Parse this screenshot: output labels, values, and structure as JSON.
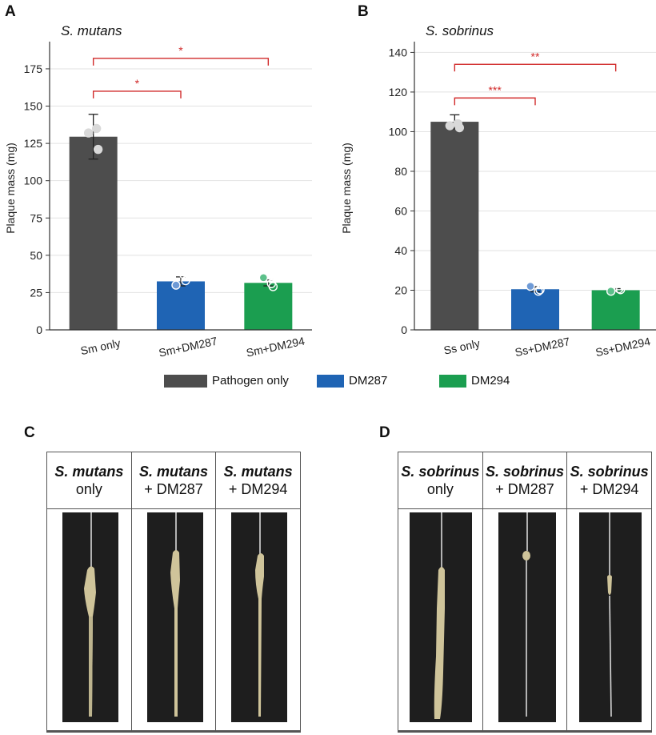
{
  "panels": {
    "a": "A",
    "b": "B",
    "c": "C",
    "d": "D"
  },
  "chart_data": [
    {
      "type": "bar",
      "title": "S. mutans",
      "ylabel": "Plaque mass (mg)",
      "ylim": [
        0,
        190
      ],
      "yticks": [
        0,
        25,
        50,
        75,
        100,
        125,
        150,
        175
      ],
      "grid": true,
      "categories": [
        "Sm only",
        "Sm+DM287",
        "Sm+DM294"
      ],
      "values": [
        129.5,
        32.5,
        31.5
      ],
      "errors": [
        15,
        3,
        2
      ],
      "colors": [
        "#4d4d4d",
        "#1f64b4",
        "#1b9e50"
      ],
      "points": [
        [
          132,
          121,
          135
        ],
        [
          30,
          33,
          37
        ],
        [
          35,
          29,
          31
        ]
      ],
      "significance": [
        {
          "from": 0,
          "to": 1,
          "y": 160,
          "label": "*"
        },
        {
          "from": 0,
          "to": 2,
          "y": 182,
          "label": "*"
        }
      ]
    },
    {
      "type": "bar",
      "title": "S. sobrinus",
      "ylabel": "Plaque mass (mg)",
      "ylim": [
        0,
        143
      ],
      "yticks": [
        0,
        20,
        40,
        60,
        80,
        100,
        120,
        140
      ],
      "grid": true,
      "categories": [
        "Ss only",
        "Ss+DM287",
        "Ss+DM294"
      ],
      "values": [
        105,
        20.5,
        20
      ],
      "errors": [
        3.5,
        1.3,
        0.8
      ],
      "colors": [
        "#4d4d4d",
        "#1f64b4",
        "#1b9e50"
      ],
      "points": [
        [
          103,
          102,
          104
        ],
        [
          22,
          20.2,
          19.5
        ],
        [
          19.5,
          20.3,
          20.8
        ]
      ],
      "significance": [
        {
          "from": 0,
          "to": 1,
          "y": 117,
          "label": "***"
        },
        {
          "from": 0,
          "to": 2,
          "y": 134,
          "label": "**"
        }
      ]
    }
  ],
  "legend": [
    {
      "label": "Pathogen only",
      "color": "#4d4d4d"
    },
    {
      "label": "DM287",
      "color": "#1f64b4"
    },
    {
      "label": "DM294",
      "color": "#1b9e50"
    }
  ],
  "photos_left": {
    "headers": [
      {
        "species": "S. mutans",
        "line2": "only"
      },
      {
        "species": "S. mutans",
        "line2": "+ DM287"
      },
      {
        "species": "S. mutans",
        "line2": "+ DM294"
      }
    ]
  },
  "photos_right": {
    "headers": [
      {
        "species": "S. sobrinus",
        "line2": "only"
      },
      {
        "species": "S. sobrinus",
        "line2": "+ DM287"
      },
      {
        "species": "S. sobrinus",
        "line2": "+ DM294"
      }
    ]
  }
}
